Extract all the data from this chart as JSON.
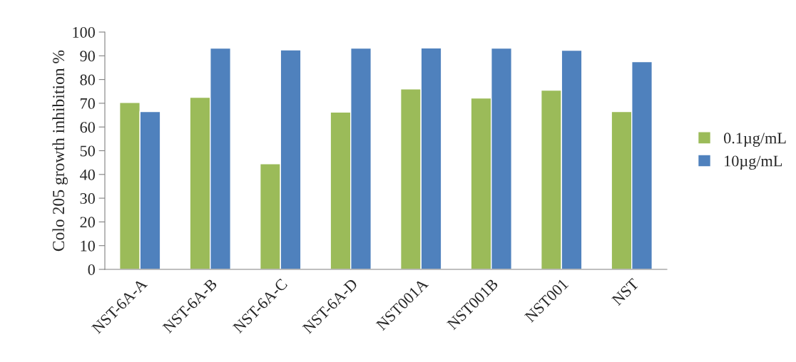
{
  "chart_data": {
    "type": "bar",
    "ylabel": "Colo 205 growth inhibition %",
    "categories": [
      "NST-6A-A",
      "NST-6A-B",
      "NST-6A-C",
      "NST-6A-D",
      "NST001A",
      "NST001B",
      "NST001",
      "NST"
    ],
    "series": [
      {
        "name": "0.1µg/mL",
        "color": "#9bbb59",
        "values": [
          70.3,
          72.5,
          44.5,
          66.3,
          76.0,
          72.2,
          75.5,
          66.5
        ]
      },
      {
        "name": "10µg/mL",
        "color": "#4f81bd",
        "values": [
          66.5,
          93.2,
          92.5,
          93.2,
          93.3,
          93.2,
          92.3,
          87.5
        ]
      }
    ],
    "ylim": [
      0,
      100
    ],
    "yticks": [
      0,
      10,
      20,
      30,
      40,
      50,
      60,
      70,
      80,
      90,
      100
    ],
    "grid": false,
    "legend": "right"
  }
}
